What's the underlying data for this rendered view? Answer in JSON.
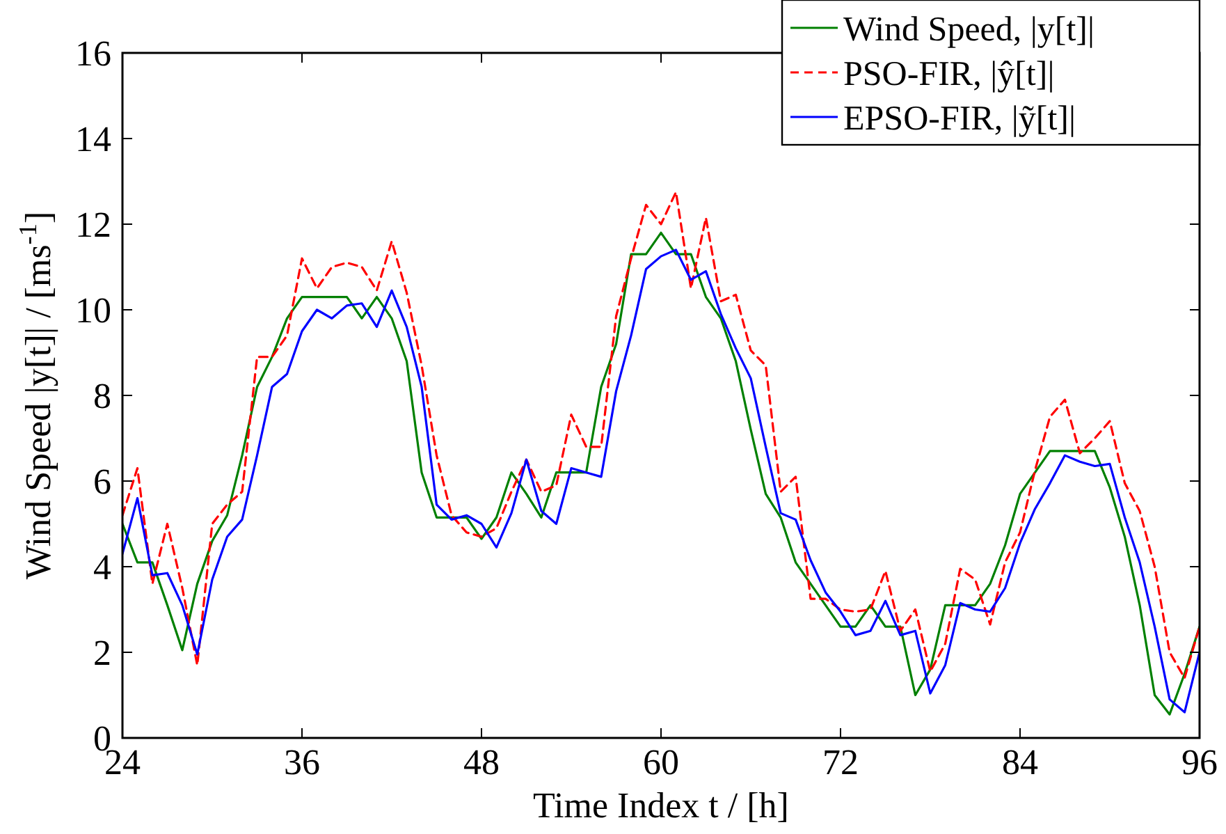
{
  "chart_data": {
    "type": "line",
    "xlabel": "Time Index t / [h]",
    "ylabel": "Wind Speed |y[t]| / [ms$^{-1}$]",
    "x": [
      24,
      25,
      26,
      27,
      28,
      29,
      30,
      31,
      32,
      33,
      34,
      35,
      36,
      37,
      38,
      39,
      40,
      41,
      42,
      43,
      44,
      45,
      46,
      47,
      48,
      49,
      50,
      51,
      52,
      53,
      54,
      55,
      56,
      57,
      58,
      59,
      60,
      61,
      62,
      63,
      64,
      65,
      66,
      67,
      68,
      69,
      70,
      71,
      72,
      73,
      74,
      75,
      76,
      77,
      78,
      79,
      80,
      81,
      82,
      83,
      84,
      85,
      86,
      87,
      88,
      89,
      90,
      91,
      92,
      93,
      94,
      95,
      96
    ],
    "series": [
      {
        "name": "Wind Speed, |y[t]|",
        "color": "#008000",
        "line_style": "solid",
        "values": [
          5.0,
          4.1,
          4.1,
          3.1,
          2.05,
          3.6,
          4.6,
          5.2,
          6.6,
          8.2,
          8.9,
          9.8,
          10.3,
          10.3,
          10.3,
          10.3,
          9.8,
          10.3,
          9.8,
          8.8,
          6.2,
          5.15,
          5.15,
          5.15,
          4.65,
          5.15,
          6.2,
          5.7,
          5.15,
          6.2,
          6.2,
          6.2,
          8.2,
          9.2,
          11.3,
          11.3,
          11.8,
          11.3,
          11.3,
          10.3,
          9.8,
          8.8,
          7.2,
          5.7,
          5.15,
          4.1,
          3.6,
          3.1,
          2.6,
          2.6,
          3.1,
          2.6,
          2.6,
          1.0,
          1.6,
          3.1,
          3.1,
          3.1,
          3.6,
          4.5,
          5.7,
          6.2,
          6.7,
          6.7,
          6.7,
          6.7,
          5.85,
          4.7,
          3.1,
          1.0,
          0.55,
          1.5,
          2.6
        ]
      },
      {
        "name": "PSO-FIR, |ŷ[t]|",
        "color": "#ff0000",
        "line_style": "dashed",
        "values": [
          5.2,
          6.3,
          3.6,
          5.0,
          3.5,
          1.7,
          5.0,
          5.45,
          5.75,
          8.9,
          8.9,
          9.4,
          11.2,
          10.5,
          11.0,
          11.1,
          11.0,
          10.45,
          11.6,
          10.4,
          8.7,
          6.6,
          5.2,
          4.8,
          4.7,
          4.9,
          5.75,
          6.5,
          5.75,
          5.9,
          7.55,
          6.8,
          6.8,
          9.85,
          11.2,
          12.45,
          12.0,
          12.75,
          10.5,
          12.15,
          10.2,
          10.35,
          9.05,
          8.7,
          5.75,
          6.1,
          3.25,
          3.25,
          3.0,
          2.95,
          3.0,
          3.9,
          2.5,
          3.0,
          1.55,
          2.2,
          3.95,
          3.7,
          2.65,
          4.1,
          4.8,
          6.25,
          7.5,
          7.9,
          6.65,
          7.0,
          7.4,
          5.95,
          5.3,
          4.0,
          2.0,
          1.4,
          2.6
        ]
      },
      {
        "name": "EPSO-FIR, |ỹ[t]|",
        "color": "#0000ff",
        "line_style": "solid",
        "values": [
          4.3,
          5.6,
          3.8,
          3.85,
          3.1,
          1.95,
          3.7,
          4.7,
          5.1,
          6.6,
          8.2,
          8.5,
          9.5,
          10.0,
          9.8,
          10.1,
          10.15,
          9.6,
          10.45,
          9.6,
          8.2,
          5.45,
          5.1,
          5.2,
          5.0,
          4.45,
          5.25,
          6.5,
          5.3,
          5.0,
          6.3,
          6.2,
          6.1,
          8.1,
          9.4,
          10.95,
          11.25,
          11.4,
          10.7,
          10.9,
          9.9,
          9.1,
          8.4,
          6.8,
          5.25,
          5.1,
          4.15,
          3.4,
          2.95,
          2.4,
          2.5,
          3.2,
          2.4,
          2.5,
          1.04,
          1.7,
          3.15,
          3.0,
          2.95,
          3.5,
          4.55,
          5.35,
          5.95,
          6.6,
          6.45,
          6.35,
          6.4,
          5.15,
          4.1,
          2.6,
          0.9,
          0.6,
          2.0
        ]
      }
    ],
    "xlim": [
      24,
      96
    ],
    "xticks": [
      24,
      36,
      48,
      60,
      72,
      84,
      96
    ],
    "ylim": [
      0,
      16
    ],
    "yticks": [
      0,
      2,
      4,
      6,
      8,
      10,
      12,
      14,
      16
    ],
    "grid": false,
    "legend": "top right",
    "marker": "none"
  }
}
